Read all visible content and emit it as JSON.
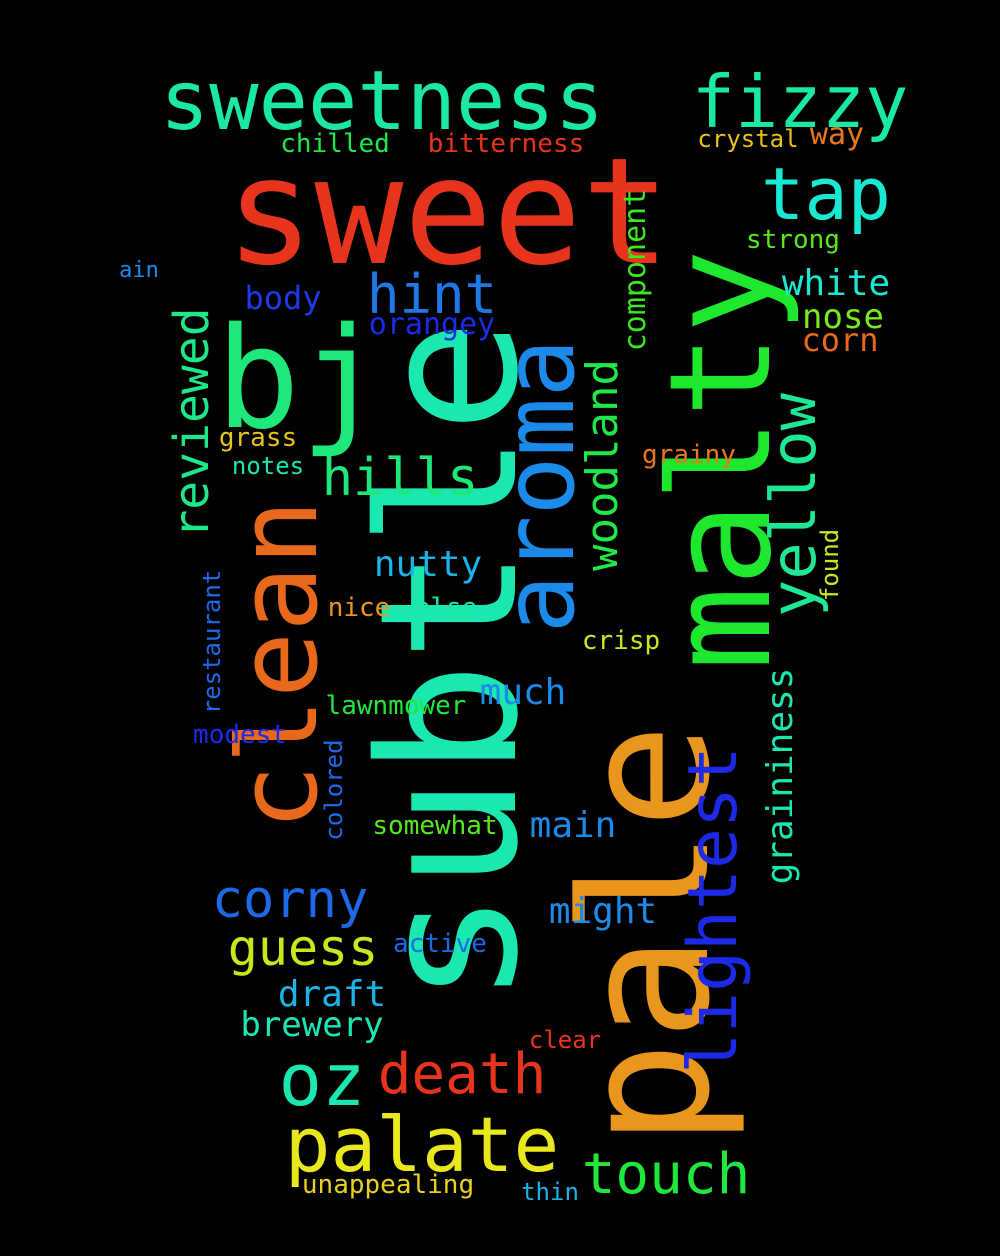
{
  "words": [
    {
      "text": "sweet",
      "color": "#e8341c",
      "rot": 0
    },
    {
      "text": "subtle",
      "color": "#1ae8b0",
      "rot": -90
    },
    {
      "text": "pale",
      "color": "#e8961c",
      "rot": -90
    },
    {
      "text": "malty",
      "color": "#1ee82e",
      "rot": -90
    },
    {
      "text": "bj",
      "color": "#1ee87a",
      "rot": 0
    },
    {
      "text": "clean",
      "color": "#e8681c",
      "rot": -90
    },
    {
      "text": "aroma",
      "color": "#1c8ae8",
      "rot": -90
    },
    {
      "text": "sweetness",
      "color": "#1ae8a4",
      "rot": 0
    },
    {
      "text": "fizzy",
      "color": "#1ae8a4",
      "rot": 0
    },
    {
      "text": "tap",
      "color": "#1ae8d2",
      "rot": 0
    },
    {
      "text": "lightest",
      "color": "#1c2ae8",
      "rot": -90
    },
    {
      "text": "yellow",
      "color": "#1ee894",
      "rot": -90
    },
    {
      "text": "palate",
      "color": "#e8e81c",
      "rot": 0
    },
    {
      "text": "oz",
      "color": "#1ae8b0",
      "rot": 0
    },
    {
      "text": "death",
      "color": "#e8341c",
      "rot": 0
    },
    {
      "text": "touch",
      "color": "#1ee83c",
      "rot": 0
    },
    {
      "text": "reviewed",
      "color": "#1ee88a",
      "rot": -90
    },
    {
      "text": "hills",
      "color": "#1ee87a",
      "rot": 0
    },
    {
      "text": "hint",
      "color": "#1c7ae8",
      "rot": 0
    },
    {
      "text": "corny",
      "color": "#1c6ae8",
      "rot": 0
    },
    {
      "text": "guess",
      "color": "#c8e81c",
      "rot": 0
    },
    {
      "text": "woodland",
      "color": "#1ee84a",
      "rot": -90
    },
    {
      "text": "white",
      "color": "#1ae8d2",
      "rot": 0
    },
    {
      "text": "nose",
      "color": "#7ae81c",
      "rot": 0
    },
    {
      "text": "corn",
      "color": "#e8681c",
      "rot": 0
    },
    {
      "text": "body",
      "color": "#1c3ae8",
      "rot": 0
    },
    {
      "text": "orangey",
      "color": "#1c2ae8",
      "rot": 0
    },
    {
      "text": "nutty",
      "color": "#1ab4e8",
      "rot": 0
    },
    {
      "text": "draft",
      "color": "#1ab4e8",
      "rot": 0
    },
    {
      "text": "brewery",
      "color": "#1ae8b4",
      "rot": 0
    },
    {
      "text": "much",
      "color": "#1c8ae8",
      "rot": 0
    },
    {
      "text": "main",
      "color": "#1c8ae8",
      "rot": 0
    },
    {
      "text": "might",
      "color": "#1c8ae8",
      "rot": 0
    },
    {
      "text": "graininess",
      "color": "#1ae8b0",
      "rot": -90
    },
    {
      "text": "component",
      "color": "#3ce81e",
      "rot": -90
    },
    {
      "text": "chilled",
      "color": "#1ee84a",
      "rot": 0
    },
    {
      "text": "bitterness",
      "color": "#e8341c",
      "rot": 0
    },
    {
      "text": "crystal",
      "color": "#e8c21c",
      "rot": 0
    },
    {
      "text": "way",
      "color": "#e8781c",
      "rot": 0
    },
    {
      "text": "strong",
      "color": "#5ae81c",
      "rot": 0
    },
    {
      "text": "ain",
      "color": "#1c8ae8",
      "rot": 0
    },
    {
      "text": "grass",
      "color": "#e8c21c",
      "rot": 0
    },
    {
      "text": "notes",
      "color": "#1ae8b0",
      "rot": 0
    },
    {
      "text": "grainy",
      "color": "#e8781c",
      "rot": 0
    },
    {
      "text": "found",
      "color": "#c8e81c",
      "rot": -90
    },
    {
      "text": "restaurant",
      "color": "#1c6ae8",
      "rot": -90
    },
    {
      "text": "nice",
      "color": "#e8961c",
      "rot": 0
    },
    {
      "text": "else",
      "color": "#1ae8a4",
      "rot": 0
    },
    {
      "text": "crisp",
      "color": "#c8e81c",
      "rot": 0
    },
    {
      "text": "lawnmower",
      "color": "#1ee83c",
      "rot": 0
    },
    {
      "text": "modest",
      "color": "#1c2ae8",
      "rot": 0
    },
    {
      "text": "colored",
      "color": "#1c6ae8",
      "rot": -90
    },
    {
      "text": "somewhat",
      "color": "#5ae81c",
      "rot": 0
    },
    {
      "text": "active",
      "color": "#1c6ae8",
      "rot": 0
    },
    {
      "text": "clear",
      "color": "#e8341c",
      "rot": 0
    },
    {
      "text": "unappealing",
      "color": "#e8d21c",
      "rot": 0
    },
    {
      "text": "thin",
      "color": "#1ab4e8",
      "rot": 0
    }
  ]
}
